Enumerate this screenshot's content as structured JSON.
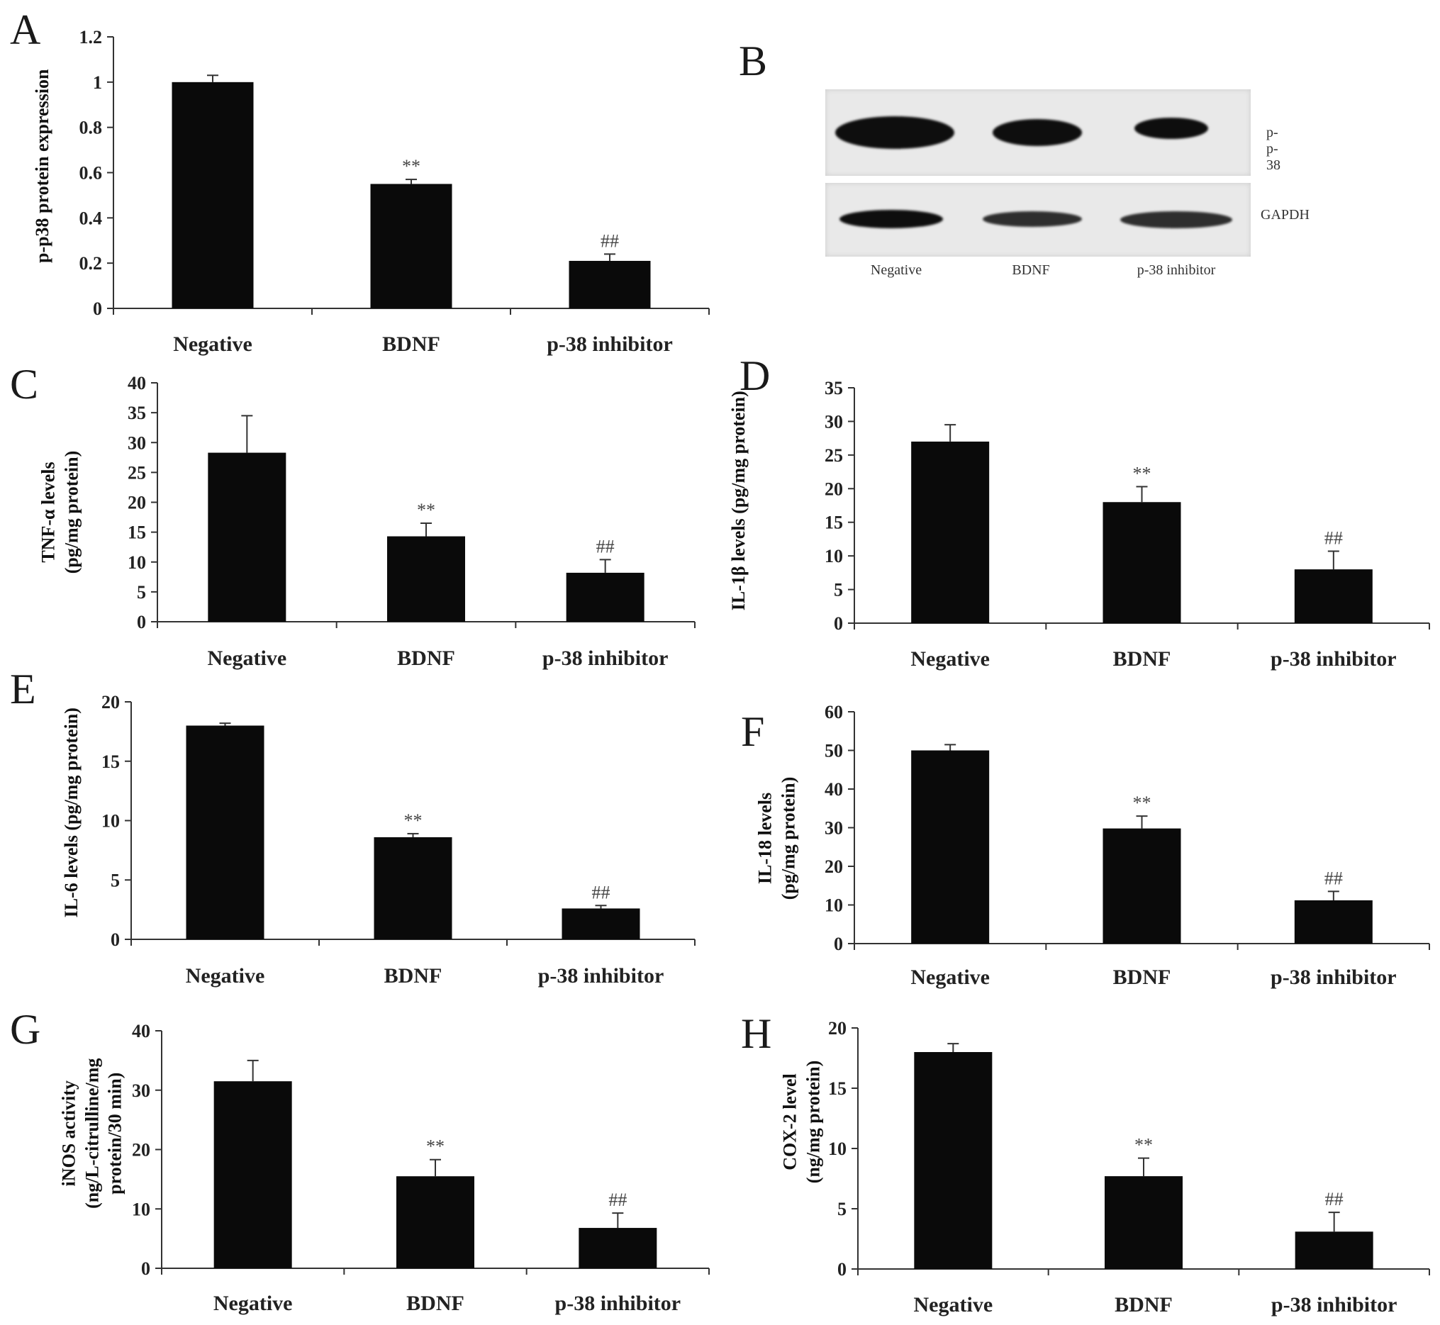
{
  "charts": [
    {
      "id": "A",
      "letter": "A",
      "ylabel": "p-p38 protein expression",
      "categories": [
        "Negative",
        "BDNF",
        "p-38 inhibitor"
      ],
      "values": [
        1.0,
        0.55,
        0.21
      ],
      "errors": [
        0.03,
        0.02,
        0.03
      ],
      "ylim": [
        0,
        1.2
      ],
      "ticks": [
        "0",
        "0.2",
        "0.4",
        "0.6",
        "0.8",
        "1",
        "1.2"
      ],
      "sig": [
        "",
        "**",
        "##"
      ]
    },
    {
      "id": "C",
      "letter": "C",
      "ylabel": "TNF-α levels\n(pg/mg protein)",
      "categories": [
        "Negative",
        "BDNF",
        "p-38 inhibitor"
      ],
      "values": [
        28.3,
        14.3,
        8.2
      ],
      "errors": [
        6.2,
        2.2,
        2.2
      ],
      "ylim": [
        0,
        40
      ],
      "ticks": [
        "0",
        "5",
        "10",
        "15",
        "20",
        "25",
        "30",
        "35",
        "40"
      ],
      "sig": [
        "",
        "**",
        "##"
      ]
    },
    {
      "id": "D",
      "letter": "D",
      "ylabel": "IL-1β levels (pg/mg protein)",
      "categories": [
        "Negative",
        "BDNF",
        "p-38 inhibitor"
      ],
      "values": [
        27.0,
        18.0,
        8.0
      ],
      "errors": [
        2.5,
        2.3,
        2.7
      ],
      "ylim": [
        0,
        35
      ],
      "ticks": [
        "0",
        "5",
        "10",
        "15",
        "20",
        "25",
        "30",
        "35"
      ],
      "sig": [
        "",
        "**",
        "##"
      ]
    },
    {
      "id": "E",
      "letter": "E",
      "ylabel": "IL-6 levels (pg/mg protein)",
      "categories": [
        "Negative",
        "BDNF",
        "p-38 inhibitor"
      ],
      "values": [
        18.0,
        8.6,
        2.6
      ],
      "errors": [
        0.2,
        0.3,
        0.25
      ],
      "ylim": [
        0,
        20
      ],
      "ticks": [
        "0",
        "5",
        "10",
        "15",
        "20"
      ],
      "sig": [
        "",
        "**",
        "##"
      ]
    },
    {
      "id": "F",
      "letter": "F",
      "ylabel": "IL-18 levels\n(pg/mg protein)",
      "categories": [
        "Negative",
        "BDNF",
        "p-38 inhibitor"
      ],
      "values": [
        50.0,
        29.8,
        11.2
      ],
      "errors": [
        1.5,
        3.2,
        2.3
      ],
      "ylim": [
        0,
        60
      ],
      "ticks": [
        "0",
        "10",
        "20",
        "30",
        "40",
        "50",
        "60"
      ],
      "sig": [
        "",
        "**",
        "##"
      ]
    },
    {
      "id": "G",
      "letter": "G",
      "ylabel": "iNOS activity\n(ng/L-citrulline/mg\nprotein/30 min)",
      "categories": [
        "Negative",
        "BDNF",
        "p-38 inhibitor"
      ],
      "values": [
        31.5,
        15.5,
        6.8
      ],
      "errors": [
        3.5,
        2.8,
        2.5
      ],
      "ylim": [
        0,
        40
      ],
      "ticks": [
        "0",
        "10",
        "20",
        "30",
        "40"
      ],
      "sig": [
        "",
        "**",
        "##"
      ]
    },
    {
      "id": "H",
      "letter": "H",
      "ylabel": "COX-2 level\n(ng/mg protein)",
      "categories": [
        "Negative",
        "BDNF",
        "p-38 inhibitor"
      ],
      "values": [
        18.0,
        7.7,
        3.1
      ],
      "errors": [
        0.7,
        1.5,
        1.6
      ],
      "ylim": [
        0,
        20
      ],
      "ticks": [
        "0",
        "5",
        "10",
        "15",
        "20"
      ],
      "sig": [
        "",
        "**",
        "##"
      ]
    }
  ],
  "blot": {
    "letter": "B",
    "rows": [
      "p-p-38",
      "GAPDH"
    ],
    "lanes": [
      "Negative",
      "BDNF",
      "p-38 inhibitor"
    ]
  },
  "chart_data": [
    {
      "type": "bar",
      "panel": "A",
      "categories": [
        "Negative",
        "BDNF",
        "p-38 inhibitor"
      ],
      "values": [
        1.0,
        0.55,
        0.21
      ],
      "errors": [
        0.03,
        0.02,
        0.03
      ],
      "ylabel": "p-p38 protein expression",
      "ylim": [
        0,
        1.2
      ],
      "annotations": [
        "",
        "**",
        "##"
      ]
    },
    {
      "type": "bar",
      "panel": "C",
      "categories": [
        "Negative",
        "BDNF",
        "p-38 inhibitor"
      ],
      "values": [
        28.3,
        14.3,
        8.2
      ],
      "errors": [
        6.2,
        2.2,
        2.2
      ],
      "ylabel": "TNF-α levels (pg/mg protein)",
      "ylim": [
        0,
        40
      ],
      "annotations": [
        "",
        "**",
        "##"
      ]
    },
    {
      "type": "bar",
      "panel": "D",
      "categories": [
        "Negative",
        "BDNF",
        "p-38 inhibitor"
      ],
      "values": [
        27.0,
        18.0,
        8.0
      ],
      "errors": [
        2.5,
        2.3,
        2.7
      ],
      "ylabel": "IL-1β levels (pg/mg protein)",
      "ylim": [
        0,
        35
      ],
      "annotations": [
        "",
        "**",
        "##"
      ]
    },
    {
      "type": "bar",
      "panel": "E",
      "categories": [
        "Negative",
        "BDNF",
        "p-38 inhibitor"
      ],
      "values": [
        18.0,
        8.6,
        2.6
      ],
      "errors": [
        0.2,
        0.3,
        0.25
      ],
      "ylabel": "IL-6 levels (pg/mg protein)",
      "ylim": [
        0,
        20
      ],
      "annotations": [
        "",
        "**",
        "##"
      ]
    },
    {
      "type": "bar",
      "panel": "F",
      "categories": [
        "Negative",
        "BDNF",
        "p-38 inhibitor"
      ],
      "values": [
        50.0,
        29.8,
        11.2
      ],
      "errors": [
        1.5,
        3.2,
        2.3
      ],
      "ylabel": "IL-18 levels (pg/mg protein)",
      "ylim": [
        0,
        60
      ],
      "annotations": [
        "",
        "**",
        "##"
      ]
    },
    {
      "type": "bar",
      "panel": "G",
      "categories": [
        "Negative",
        "BDNF",
        "p-38 inhibitor"
      ],
      "values": [
        31.5,
        15.5,
        6.8
      ],
      "errors": [
        3.5,
        2.8,
        2.5
      ],
      "ylabel": "iNOS activity (ng/L-citrulline/mg protein/30 min)",
      "ylim": [
        0,
        40
      ],
      "annotations": [
        "",
        "**",
        "##"
      ]
    },
    {
      "type": "bar",
      "panel": "H",
      "categories": [
        "Negative",
        "BDNF",
        "p-38 inhibitor"
      ],
      "values": [
        18.0,
        7.7,
        3.1
      ],
      "errors": [
        0.7,
        1.5,
        1.6
      ],
      "ylabel": "COX-2 level (ng/mg protein)",
      "ylim": [
        0,
        20
      ],
      "annotations": [
        "",
        "**",
        "##"
      ]
    }
  ]
}
